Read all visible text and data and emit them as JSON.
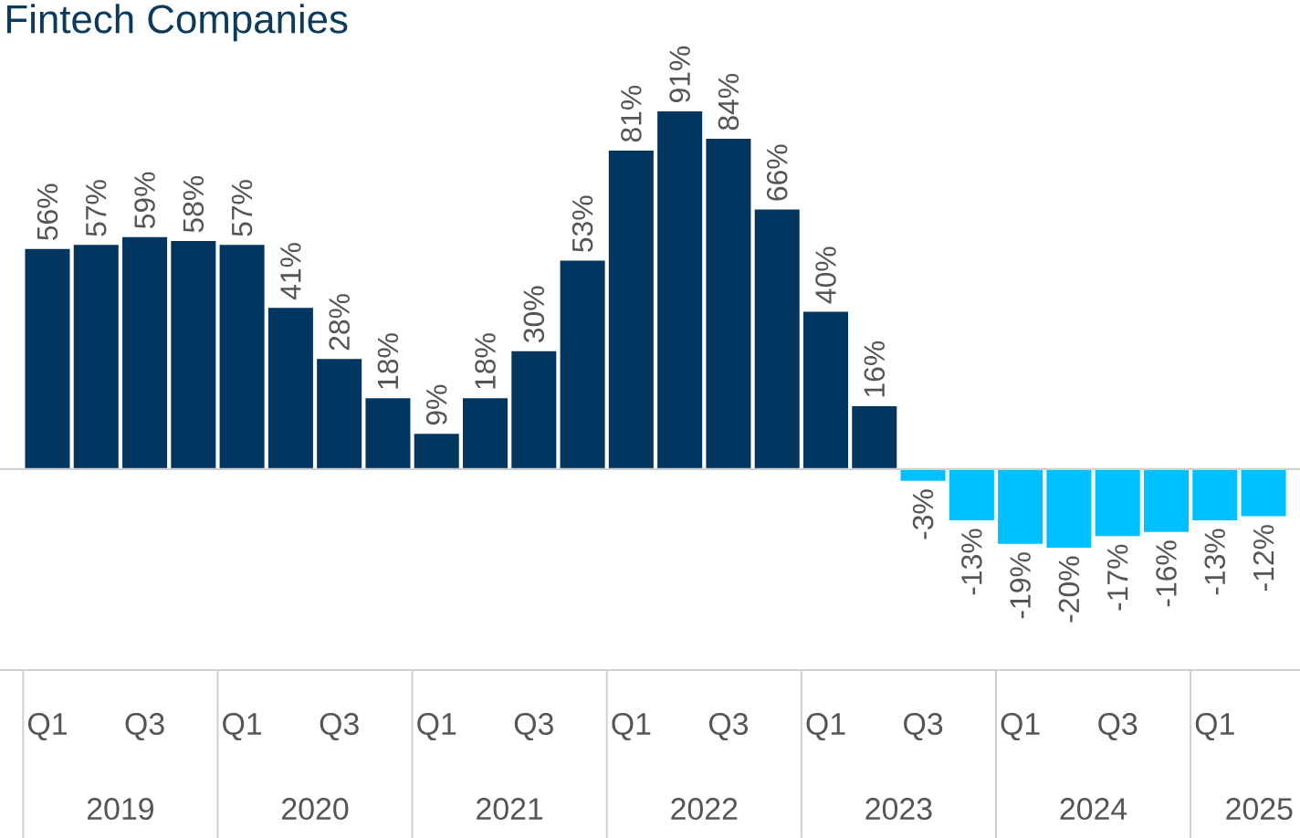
{
  "chart_data": {
    "type": "bar",
    "title": "Fintech Companies",
    "categories": [
      "Q1",
      null,
      "Q3",
      null,
      "Q1",
      null,
      "Q3",
      null,
      "Q1",
      null,
      "Q3",
      null,
      "Q1",
      null,
      "Q3",
      null,
      "Q1",
      null,
      "Q3",
      null,
      "Q1",
      null,
      "Q3",
      null,
      "Q1",
      null
    ],
    "values": [
      56,
      57,
      59,
      58,
      57,
      41,
      28,
      18,
      9,
      18,
      30,
      53,
      81,
      91,
      84,
      66,
      40,
      16,
      -3,
      -13,
      -19,
      -20,
      -17,
      -16,
      -13,
      -12
    ],
    "value_labels": [
      "56%",
      "57%",
      "59%",
      "58%",
      "57%",
      "41%",
      "28%",
      "18%",
      "9%",
      "18%",
      "30%",
      "53%",
      "81%",
      "91%",
      "84%",
      "66%",
      "40%",
      "16%",
      "-3%",
      "-13%",
      "-19%",
      "-20%",
      "-17%",
      "-16%",
      "-13%",
      "-12%"
    ],
    "colors": [
      "#003660",
      "#003660",
      "#003660",
      "#003660",
      "#003660",
      "#003660",
      "#003660",
      "#003660",
      "#003660",
      "#003660",
      "#003660",
      "#003660",
      "#003660",
      "#003660",
      "#003660",
      "#003660",
      "#003660",
      "#003660",
      "#00bfff",
      "#00bfff",
      "#00bfff",
      "#00bfff",
      "#00bfff",
      "#00bfff",
      "#00bfff",
      "#00bfff"
    ],
    "annotations": [
      "2019",
      "2020",
      "2021",
      "2022",
      "2023",
      "2024",
      "2025"
    ]
  }
}
